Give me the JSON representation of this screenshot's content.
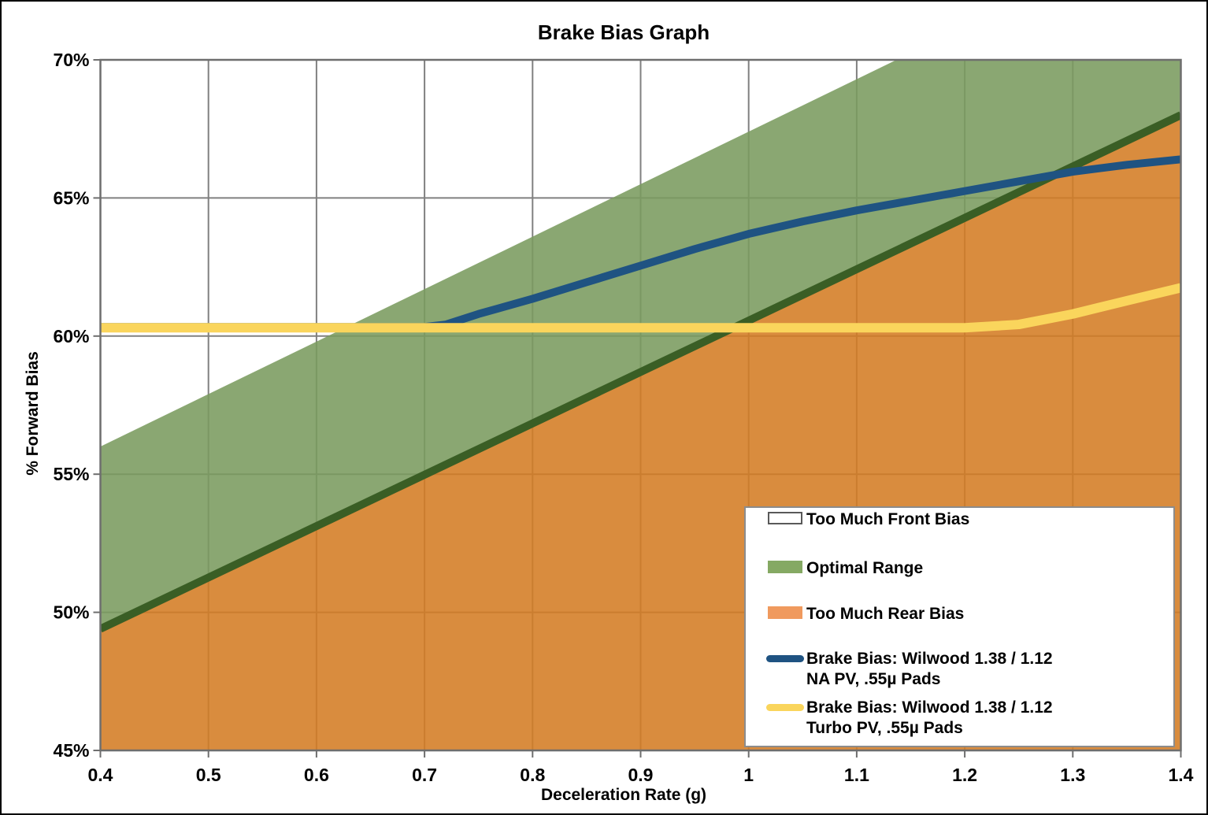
{
  "chart_data": {
    "type": "line",
    "title": "Brake Bias Graph",
    "xlabel": "Deceleration Rate (g)",
    "ylabel": "% Forward Bias",
    "xlim": [
      0.4,
      1.4
    ],
    "ylim": [
      45,
      70
    ],
    "grid": true,
    "legend_position": "bottom-right",
    "xticks": [
      {
        "v": 0.4,
        "label": "0.4"
      },
      {
        "v": 0.5,
        "label": "0.5"
      },
      {
        "v": 0.6,
        "label": "0.6"
      },
      {
        "v": 0.7,
        "label": "0.7"
      },
      {
        "v": 0.8,
        "label": "0.8"
      },
      {
        "v": 0.9,
        "label": "0.9"
      },
      {
        "v": 1.0,
        "label": "1"
      },
      {
        "v": 1.1,
        "label": "1.1"
      },
      {
        "v": 1.2,
        "label": "1.2"
      },
      {
        "v": 1.3,
        "label": "1.3"
      },
      {
        "v": 1.4,
        "label": "1.4"
      }
    ],
    "yticks": [
      {
        "v": 45,
        "label": "45%"
      },
      {
        "v": 50,
        "label": "50%"
      },
      {
        "v": 55,
        "label": "55%"
      },
      {
        "v": 60,
        "label": "60%"
      },
      {
        "v": 65,
        "label": "65%"
      },
      {
        "v": 70,
        "label": "70%"
      }
    ],
    "bands": {
      "optimal_range": {
        "name": "Optimal Range",
        "top_line": [
          [
            0.4,
            56.0
          ],
          [
            1.4,
            75.0
          ]
        ],
        "bottom_line": [
          [
            0.4,
            49.4
          ],
          [
            1.4,
            68.0
          ]
        ]
      },
      "too_much_front_bias": {
        "name": "Too Much Front Bias",
        "region": "above optimal range"
      },
      "too_much_rear_bias": {
        "name": "Too Much Rear Bias",
        "region": "below optimal range"
      }
    },
    "series": [
      {
        "name": "Brake Bias: Wilwood 1.38 / 1.12 NA PV, .55µ Pads",
        "color": "#1F5382",
        "width": 10,
        "points": [
          [
            0.4,
            60.33
          ],
          [
            0.7,
            60.33
          ],
          [
            0.72,
            60.42
          ],
          [
            0.75,
            60.8
          ],
          [
            0.8,
            61.35
          ],
          [
            0.85,
            61.95
          ],
          [
            0.9,
            62.55
          ],
          [
            0.95,
            63.15
          ],
          [
            1.0,
            63.7
          ],
          [
            1.05,
            64.15
          ],
          [
            1.1,
            64.55
          ],
          [
            1.15,
            64.9
          ],
          [
            1.2,
            65.25
          ],
          [
            1.25,
            65.6
          ],
          [
            1.3,
            65.95
          ],
          [
            1.35,
            66.2
          ],
          [
            1.4,
            66.4
          ]
        ]
      },
      {
        "name": "Brake Bias: Wilwood 1.38 / 1.12 Turbo PV, .55µ Pads",
        "color": "#FAD55C",
        "width": 12,
        "points": [
          [
            0.4,
            60.3
          ],
          [
            1.2,
            60.3
          ],
          [
            1.25,
            60.42
          ],
          [
            1.3,
            60.8
          ],
          [
            1.35,
            61.28
          ],
          [
            1.4,
            61.75
          ]
        ]
      }
    ]
  },
  "colors": {
    "grid": "#808080",
    "axis": "#6E6E6E",
    "optimal_fill": "#7A9B5E",
    "rear_fill": "#D47C23",
    "front_fill": "#FFFFFF",
    "area_opacity": 0.88,
    "band_edge": "#3A5E25",
    "na_line": "#1F5382",
    "turbo_line": "#FAD55C",
    "legend_border": "#8C8C8C",
    "legend_optimal_swatch": "#85A963",
    "legend_rear_swatch": "#F09A5E",
    "legend_front_border": "#595959",
    "text": "#000000"
  },
  "legend": {
    "entries": [
      {
        "id": "front-bias",
        "swatch": "area-outline",
        "lines": [
          "Too Much Front Bias"
        ]
      },
      {
        "id": "optimal-range",
        "swatch": "area",
        "color": "#85A963",
        "lines": [
          "Optimal Range"
        ]
      },
      {
        "id": "rear-bias",
        "swatch": "area",
        "color": "#F09A5E",
        "lines": [
          "Too Much Rear Bias"
        ]
      },
      {
        "id": "na-pv",
        "swatch": "line",
        "color": "#1F5382",
        "lines": [
          "Brake Bias: Wilwood 1.38 / 1.12",
          "NA PV, .55µ Pads"
        ]
      },
      {
        "id": "turbo-pv",
        "swatch": "line",
        "color": "#FAD55C",
        "lines": [
          "Brake Bias: Wilwood 1.38 / 1.12",
          "Turbo PV, .55µ Pads"
        ]
      }
    ]
  }
}
